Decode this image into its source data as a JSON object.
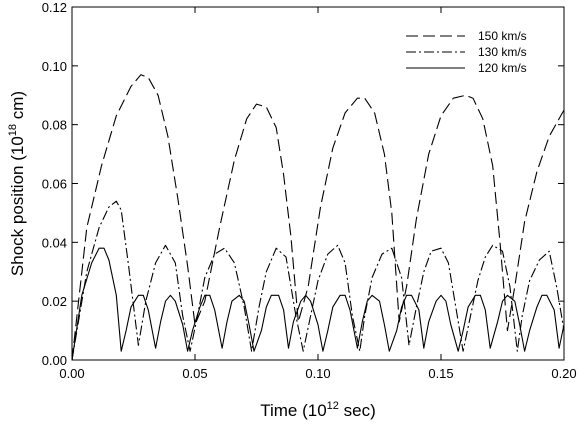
{
  "chart_data": {
    "type": "line",
    "title": "",
    "xlabel": {
      "pre": "Time (10",
      "sup": "12",
      "post": " sec)"
    },
    "ylabel": {
      "pre": "Shock position (10",
      "sup": "18",
      "post": " cm)"
    },
    "xlim": [
      0,
      0.2
    ],
    "ylim": [
      0,
      0.12
    ],
    "xticks": [
      0,
      0.05,
      0.1,
      0.15,
      0.2
    ],
    "xtick_labels": [
      "0.00",
      "0.05",
      "0.10",
      "0.15",
      "0.20"
    ],
    "yticks": [
      0,
      0.02,
      0.04,
      0.06,
      0.08,
      0.1,
      0.12
    ],
    "ytick_labels": [
      "0.00",
      "0.02",
      "0.04",
      "0.06",
      "0.08",
      "0.10",
      "0.12"
    ],
    "grid": false,
    "legend_position": "top-right",
    "series": [
      {
        "name": "150 km/s",
        "style": "dashed",
        "color": "#000000",
        "x": [
          0,
          0.006,
          0.012,
          0.018,
          0.024,
          0.028,
          0.031,
          0.035,
          0.039,
          0.043,
          0.047,
          0.05,
          0.054,
          0.06,
          0.066,
          0.071,
          0.075,
          0.079,
          0.083,
          0.086,
          0.089,
          0.092,
          0.096,
          0.101,
          0.106,
          0.111,
          0.116,
          0.119,
          0.123,
          0.127,
          0.13,
          0.133,
          0.136,
          0.14,
          0.145,
          0.15,
          0.155,
          0.16,
          0.163,
          0.167,
          0.171,
          0.174,
          0.177,
          0.18,
          0.184,
          0.189,
          0.194,
          0.2
        ],
        "y": [
          0,
          0.045,
          0.066,
          0.083,
          0.093,
          0.097,
          0.096,
          0.09,
          0.076,
          0.055,
          0.032,
          0.012,
          0.02,
          0.045,
          0.068,
          0.082,
          0.087,
          0.086,
          0.079,
          0.063,
          0.042,
          0.013,
          0.025,
          0.052,
          0.072,
          0.084,
          0.089,
          0.089,
          0.084,
          0.07,
          0.05,
          0.013,
          0.025,
          0.048,
          0.07,
          0.083,
          0.089,
          0.09,
          0.089,
          0.082,
          0.066,
          0.04,
          0.01,
          0.025,
          0.047,
          0.064,
          0.076,
          0.085
        ]
      },
      {
        "name": "130 km/s",
        "style": "dash-dot",
        "color": "#000000",
        "x": [
          0,
          0.006,
          0.011,
          0.015,
          0.018,
          0.02,
          0.023,
          0.027,
          0.03,
          0.034,
          0.038,
          0.042,
          0.045,
          0.048,
          0.051,
          0.054,
          0.058,
          0.062,
          0.066,
          0.07,
          0.073,
          0.076,
          0.079,
          0.083,
          0.087,
          0.091,
          0.094,
          0.097,
          0.1,
          0.104,
          0.108,
          0.111,
          0.114,
          0.117,
          0.119,
          0.122,
          0.126,
          0.13,
          0.134,
          0.137,
          0.14,
          0.143,
          0.146,
          0.15,
          0.153,
          0.156,
          0.159,
          0.162,
          0.165,
          0.168,
          0.171,
          0.175,
          0.178,
          0.181,
          0.183,
          0.186,
          0.19,
          0.194,
          0.197,
          0.2
        ],
        "y": [
          0,
          0.03,
          0.045,
          0.052,
          0.054,
          0.051,
          0.032,
          0.005,
          0.02,
          0.033,
          0.039,
          0.033,
          0.015,
          0.003,
          0.015,
          0.028,
          0.036,
          0.038,
          0.033,
          0.018,
          0.003,
          0.018,
          0.03,
          0.038,
          0.035,
          0.015,
          0.003,
          0.015,
          0.027,
          0.036,
          0.039,
          0.033,
          0.015,
          0.003,
          0.015,
          0.028,
          0.036,
          0.038,
          0.028,
          0.005,
          0.018,
          0.03,
          0.037,
          0.038,
          0.033,
          0.018,
          0.003,
          0.015,
          0.027,
          0.035,
          0.039,
          0.037,
          0.025,
          0.003,
          0.015,
          0.027,
          0.034,
          0.037,
          0.025,
          0.01
        ]
      },
      {
        "name": "120 km/s",
        "style": "solid",
        "color": "#000000",
        "x": [
          0,
          0.004,
          0.008,
          0.011,
          0.013,
          0.015,
          0.018,
          0.02,
          0.022,
          0.024,
          0.027,
          0.029,
          0.031,
          0.034,
          0.036,
          0.038,
          0.04,
          0.042,
          0.045,
          0.047,
          0.049,
          0.052,
          0.054,
          0.056,
          0.058,
          0.061,
          0.063,
          0.065,
          0.068,
          0.07,
          0.072,
          0.074,
          0.077,
          0.079,
          0.081,
          0.084,
          0.086,
          0.088,
          0.09,
          0.093,
          0.095,
          0.097,
          0.1,
          0.102,
          0.104,
          0.106,
          0.109,
          0.111,
          0.113,
          0.116,
          0.118,
          0.12,
          0.122,
          0.125,
          0.127,
          0.129,
          0.132,
          0.134,
          0.136,
          0.138,
          0.141,
          0.143,
          0.145,
          0.148,
          0.15,
          0.152,
          0.154,
          0.157,
          0.159,
          0.161,
          0.164,
          0.166,
          0.168,
          0.17,
          0.173,
          0.175,
          0.177,
          0.18,
          0.182,
          0.184,
          0.186,
          0.189,
          0.191,
          0.193,
          0.196,
          0.198,
          0.2
        ],
        "y": [
          0,
          0.022,
          0.033,
          0.038,
          0.038,
          0.034,
          0.022,
          0.003,
          0.01,
          0.018,
          0.022,
          0.022,
          0.017,
          0.004,
          0.013,
          0.02,
          0.022,
          0.02,
          0.012,
          0.003,
          0.01,
          0.018,
          0.022,
          0.022,
          0.017,
          0.004,
          0.013,
          0.02,
          0.022,
          0.02,
          0.012,
          0.003,
          0.01,
          0.018,
          0.022,
          0.022,
          0.017,
          0.004,
          0.013,
          0.02,
          0.022,
          0.02,
          0.012,
          0.003,
          0.01,
          0.018,
          0.022,
          0.022,
          0.017,
          0.004,
          0.013,
          0.02,
          0.022,
          0.02,
          0.012,
          0.003,
          0.01,
          0.018,
          0.022,
          0.022,
          0.017,
          0.004,
          0.013,
          0.02,
          0.022,
          0.02,
          0.012,
          0.003,
          0.01,
          0.018,
          0.022,
          0.022,
          0.017,
          0.004,
          0.013,
          0.02,
          0.022,
          0.02,
          0.012,
          0.003,
          0.01,
          0.018,
          0.022,
          0.022,
          0.017,
          0.004,
          0.012
        ]
      }
    ]
  }
}
